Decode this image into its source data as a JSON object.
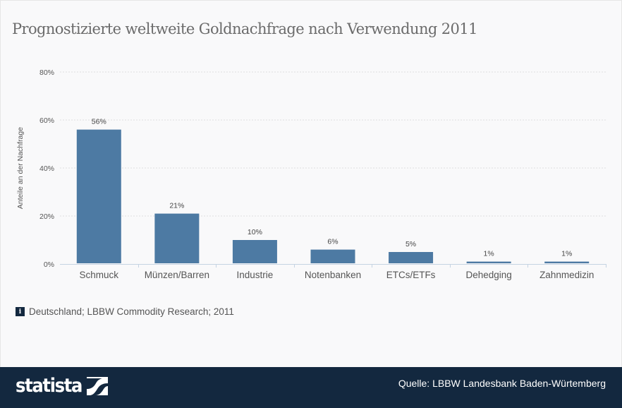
{
  "header": {
    "title": "Prognostizierte weltweite Goldnachfrage nach Verwendung 2011"
  },
  "chart_data": {
    "type": "bar",
    "title": "Prognostizierte weltweite Goldnachfrage nach Verwendung 2011",
    "categories": [
      "Schmuck",
      "Münzen/Barren",
      "Industrie",
      "Notenbanken",
      "ETCs/ETFs",
      "Dehedging",
      "Zahnmedizin"
    ],
    "values": [
      56,
      21,
      10,
      6,
      5,
      1,
      1
    ],
    "data_labels": [
      "56%",
      "21%",
      "10%",
      "6%",
      "5%",
      "1%",
      "1%"
    ],
    "xlabel": "",
    "ylabel": "Anteile an der Nachfrage",
    "ylim": [
      0,
      80
    ],
    "yticks": [
      0,
      20,
      40,
      60,
      80
    ],
    "ytick_labels": [
      "0%",
      "20%",
      "40%",
      "60%",
      "80%"
    ],
    "grid": true,
    "bar_color": "#4d7aa3"
  },
  "info": {
    "icon": "info-icon",
    "text": "Deutschland; LBBW Commodity Research; 2011"
  },
  "footer": {
    "logo_text": "statista",
    "source": "Quelle: LBBW Landesbank Baden-Würtemberg"
  }
}
